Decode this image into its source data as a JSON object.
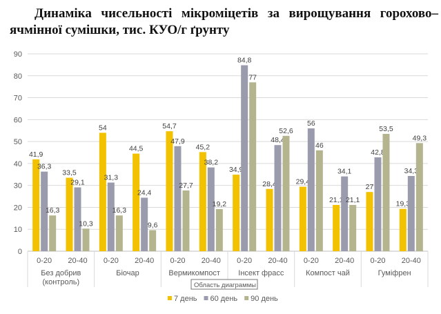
{
  "title_line1": "Динаміка чисельності мікроміцетів за вирощування горохово–",
  "title_line2": "ячмінної сумішки, тис. КУО/г ґрунту",
  "tooltip": "Область диаграммы",
  "chart_data": {
    "type": "bar",
    "ylim": [
      0,
      90
    ],
    "yticks": [
      "0",
      "10",
      "20",
      "30",
      "40",
      "50",
      "60",
      "70",
      "80",
      "90"
    ],
    "groups": [
      {
        "name": "Без добрив (контроль)",
        "name_lines": [
          "Без добрив",
          "(контроль)"
        ],
        "sub": [
          "0-20",
          "20-40"
        ]
      },
      {
        "name": "Біочар",
        "name_lines": [
          "Біочар"
        ],
        "sub": [
          "0-20",
          "20-40"
        ]
      },
      {
        "name": "Вермикомпост",
        "name_lines": [
          "Вермикомпост"
        ],
        "sub": [
          "0-20",
          "20-40"
        ]
      },
      {
        "name": "Інсект фрасс",
        "name_lines": [
          "Інсект фрасс"
        ],
        "sub": [
          "0-20",
          "20-40"
        ]
      },
      {
        "name": "Компост чай",
        "name_lines": [
          "Компост чай"
        ],
        "sub": [
          "0-20",
          "20-40"
        ]
      },
      {
        "name": "Гуміфрен",
        "name_lines": [
          "Гуміфрен"
        ],
        "sub": [
          "0-20",
          "20-40"
        ]
      }
    ],
    "series": [
      {
        "name": "7 день",
        "color": "#F2C200",
        "values": [
          41.9,
          33.5,
          54,
          44.5,
          54.7,
          45.2,
          34.9,
          28.4,
          29.4,
          21.1,
          27,
          19.3
        ],
        "labels": [
          "41,9",
          "33,5",
          "54",
          "44,5",
          "54,7",
          "45,2",
          "34,9",
          "28,4",
          "29,4",
          "21,1",
          "27",
          "19,3"
        ]
      },
      {
        "name": "60 день",
        "color": "#9B9BAE",
        "values": [
          36.3,
          29.1,
          31.3,
          24.4,
          47.9,
          38.2,
          84.8,
          48.4,
          56,
          34.1,
          42.8,
          34.3
        ],
        "labels": [
          "36,3",
          "29,1",
          "31,3",
          "24,4",
          "47,9",
          "38,2",
          "84,8",
          "48,4",
          "56",
          "34,1",
          "42,8",
          "34,3"
        ]
      },
      {
        "name": "90 день",
        "color": "#B4B48E",
        "values": [
          16.3,
          10.3,
          16.3,
          9.6,
          27.7,
          19.2,
          77,
          52.6,
          46,
          21.1,
          53.5,
          49.3
        ],
        "labels": [
          "16,3",
          "10,3",
          "16,3",
          "9,6",
          "27,7",
          "19,2",
          "77",
          "52,6",
          "46",
          "21,1",
          "53,5",
          "49,3"
        ]
      }
    ],
    "legend": "bottom"
  }
}
